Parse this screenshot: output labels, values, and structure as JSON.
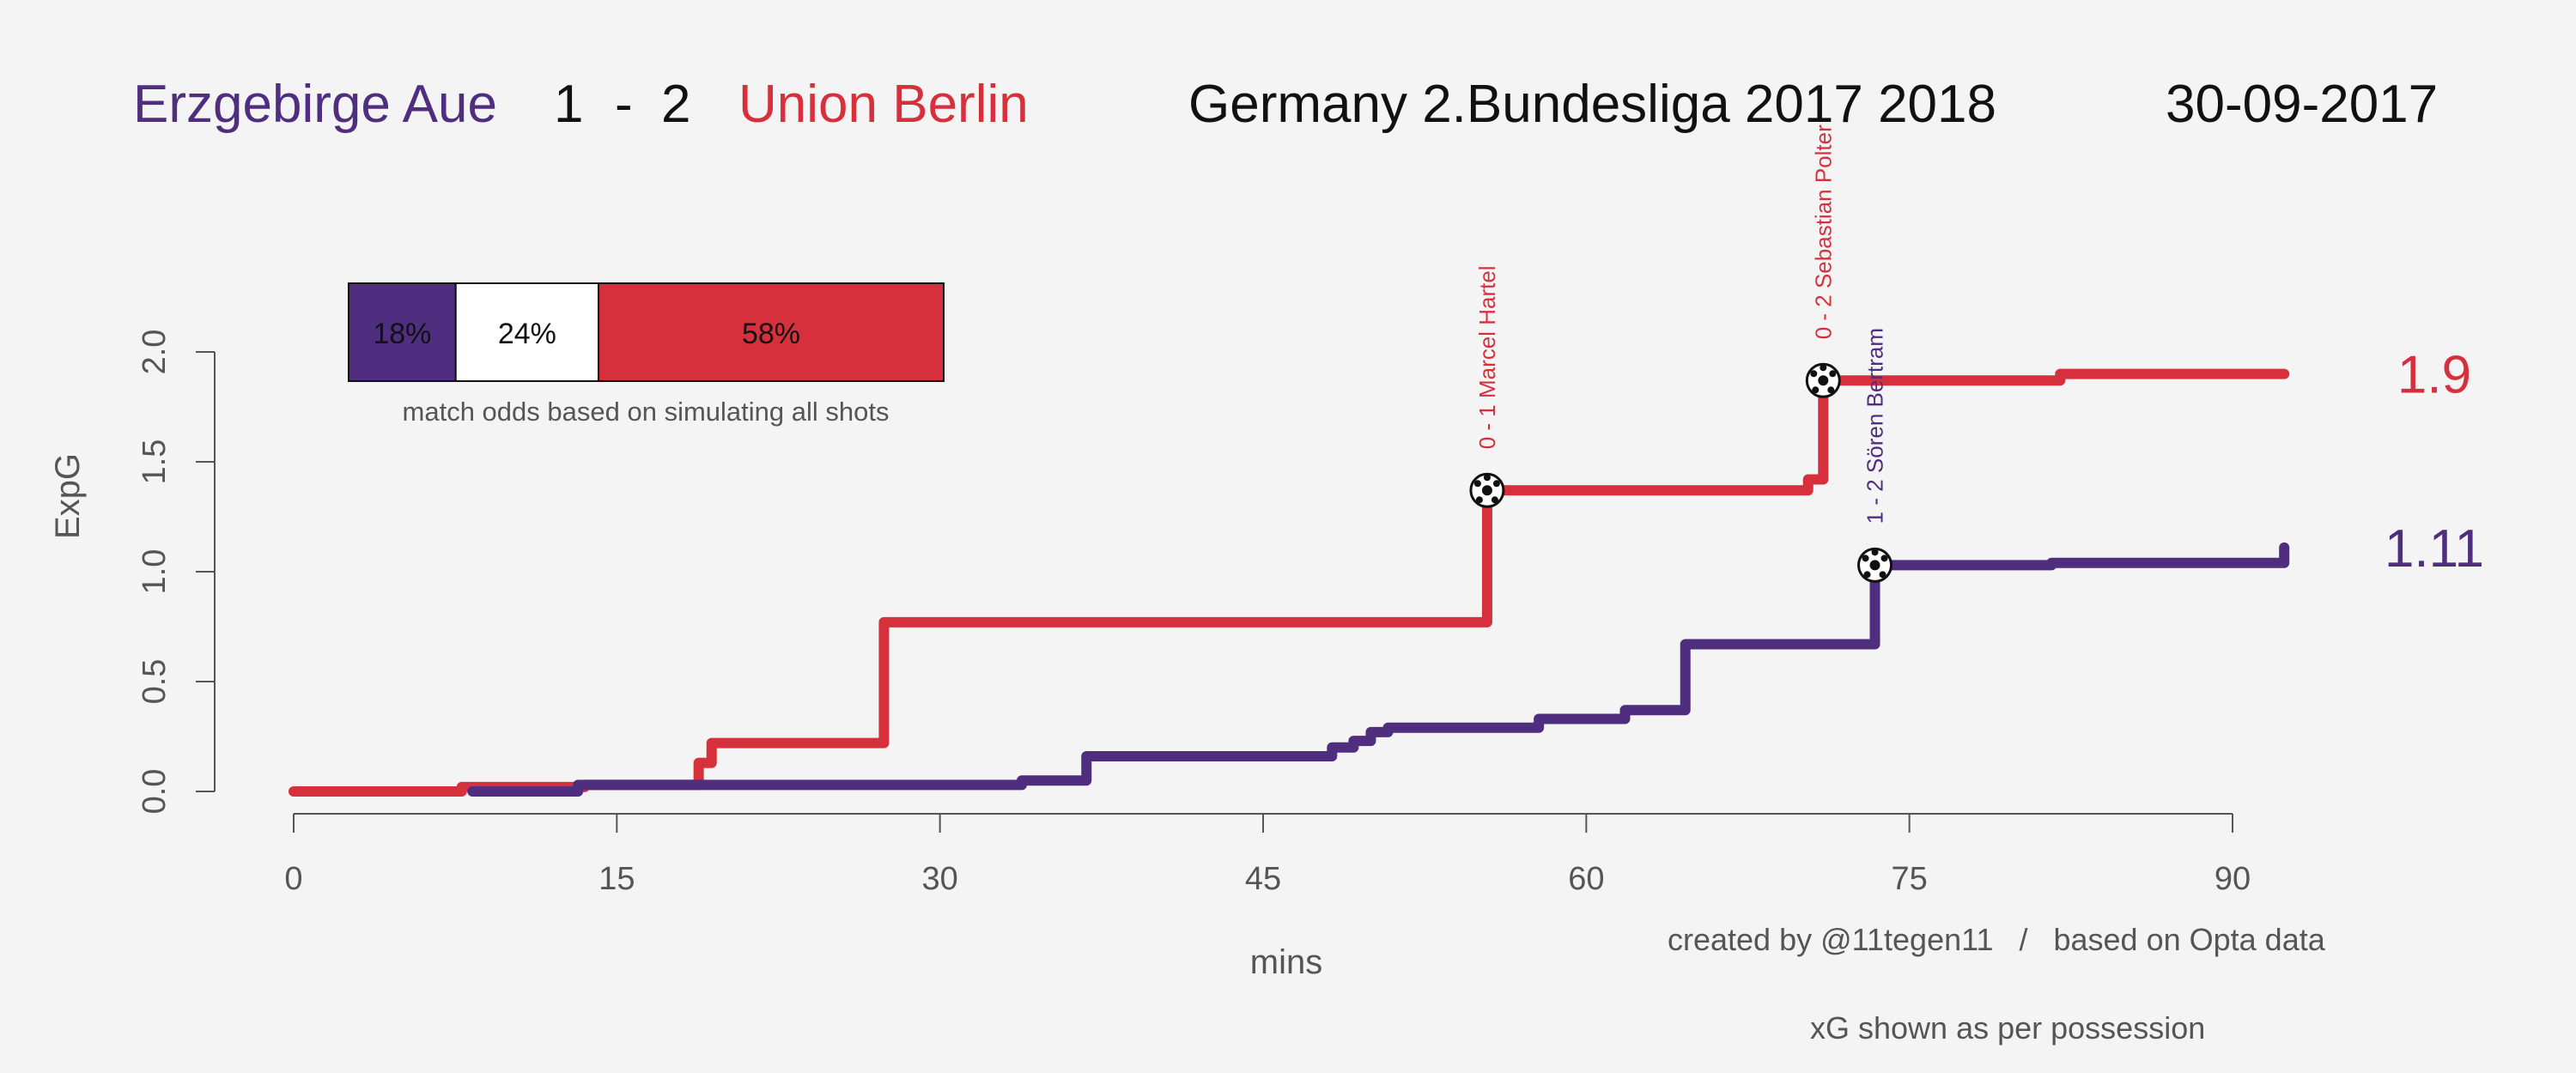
{
  "header": {
    "home_team": "Erzgebirge Aue",
    "home_score": "1",
    "score_sep": "-",
    "away_score": "2",
    "away_team": "Union Berlin",
    "competition": "Germany 2.Bundesliga 2017 2018",
    "date": "30-09-2017"
  },
  "colors": {
    "home": "#4f2d7f",
    "away": "#d7303d",
    "background": "#f4f4f4",
    "text": "#111111",
    "axis": "#555555"
  },
  "odds": {
    "home": "18%",
    "draw": "24%",
    "away": "58%",
    "home_value": 0.18,
    "draw_value": 0.24,
    "away_value": 0.58,
    "caption": "match odds based on simulating all shots"
  },
  "credits": {
    "line1": "created by @11tegen11   /   based on Opta data",
    "line2": "xG shown as per possession"
  },
  "chart_data": {
    "type": "line",
    "step": true,
    "xlabel": "mins",
    "ylabel": "ExpG",
    "xlim": [
      0,
      92.5
    ],
    "ylim": [
      0,
      2.0
    ],
    "x_ticks": [
      0,
      15,
      30,
      45,
      60,
      75,
      90
    ],
    "y_ticks": [
      "0.0",
      "0.5",
      "1.0",
      "1.5",
      "2.0"
    ],
    "grid": false,
    "series": [
      {
        "team": "home",
        "final_label": "1.11",
        "points": [
          [
            8.3,
            0.0
          ],
          [
            13.2,
            0.03
          ],
          [
            33.8,
            0.05
          ],
          [
            36.8,
            0.16
          ],
          [
            48.2,
            0.2
          ],
          [
            49.2,
            0.23
          ],
          [
            50.0,
            0.27
          ],
          [
            50.8,
            0.29
          ],
          [
            57.8,
            0.33
          ],
          [
            61.8,
            0.37
          ],
          [
            64.6,
            0.67
          ],
          [
            73.4,
            1.03
          ],
          [
            81.6,
            1.04
          ],
          [
            92.4,
            1.09
          ],
          [
            92.4,
            1.11
          ]
        ]
      },
      {
        "team": "away",
        "final_label": "1.9",
        "points": [
          [
            0,
            0.0
          ],
          [
            7.8,
            0.02
          ],
          [
            13.5,
            0.03
          ],
          [
            18.8,
            0.13
          ],
          [
            19.4,
            0.22
          ],
          [
            27.4,
            0.77
          ],
          [
            55.4,
            1.37
          ],
          [
            70.3,
            1.42
          ],
          [
            71.0,
            1.87
          ],
          [
            82.0,
            1.9
          ],
          [
            92.4,
            1.9
          ]
        ]
      }
    ],
    "goals": [
      {
        "team": "away",
        "minute": 55.4,
        "xg": 1.37,
        "label": "0 - 1 Marcel Hartel"
      },
      {
        "team": "away",
        "minute": 71.0,
        "xg": 1.87,
        "label": "0 - 2 Sebastian Polter"
      },
      {
        "team": "home",
        "minute": 73.4,
        "xg": 1.03,
        "label": "1 - 2 Sören Bertram"
      }
    ]
  }
}
